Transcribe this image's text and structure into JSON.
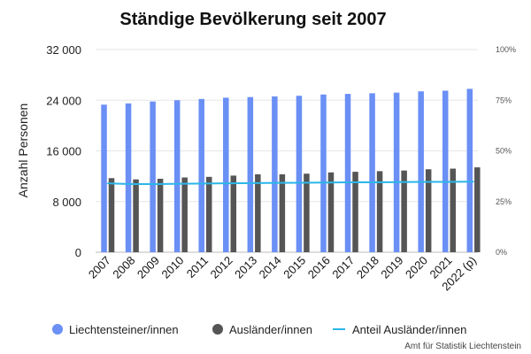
{
  "chart_data": {
    "type": "bar",
    "title": "Ständige Bevölkerung seit 2007",
    "ylabel": "Anzahl Personen",
    "ylim": [
      0,
      32000
    ],
    "yticks": [
      0,
      8000,
      16000,
      24000,
      32000
    ],
    "ytick_labels": [
      "0",
      "8 000",
      "16 000",
      "24 000",
      "32 000"
    ],
    "y2lim": [
      0,
      100
    ],
    "y2ticks": [
      0,
      25,
      50,
      75,
      100
    ],
    "y2tick_labels": [
      "0%",
      "25%",
      "50%",
      "75%",
      "100%"
    ],
    "categories": [
      "2007",
      "2008",
      "2009",
      "2010",
      "2011",
      "2012",
      "2013",
      "2014",
      "2015",
      "2016",
      "2017",
      "2018",
      "2019",
      "2020",
      "2021",
      "2022 (p)"
    ],
    "series": [
      {
        "name": "Liechtensteiner/innen",
        "kind": "bar",
        "color": "#6a8ff5",
        "values": [
          23300,
          23500,
          23800,
          24000,
          24200,
          24400,
          24500,
          24600,
          24700,
          24900,
          25000,
          25100,
          25200,
          25400,
          25500,
          25800
        ]
      },
      {
        "name": "Ausländer/innen",
        "kind": "bar",
        "color": "#555555",
        "values": [
          11700,
          11500,
          11600,
          11800,
          11900,
          12100,
          12300,
          12300,
          12400,
          12600,
          12700,
          12800,
          12900,
          13100,
          13200,
          13400
        ]
      },
      {
        "name": "Anteil Ausländer/innen",
        "kind": "line",
        "axis": "right",
        "color": "#2bb6e8",
        "values": [
          34.0,
          33.6,
          33.6,
          33.8,
          33.9,
          34.0,
          34.1,
          34.2,
          34.3,
          34.4,
          34.5,
          34.5,
          34.6,
          34.7,
          34.7,
          34.8
        ]
      }
    ],
    "grid": true,
    "legend_position": "bottom"
  },
  "credit": "Amt für Statistik Liechtenstein"
}
